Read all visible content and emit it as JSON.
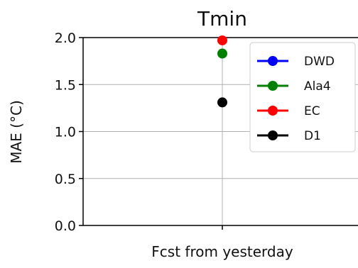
{
  "chart_data": {
    "type": "scatter",
    "title": "Tmin",
    "xlabel": "Fcst from yesterday",
    "ylabel": "MAE (°C)",
    "categories": [
      "Fcst from yesterday"
    ],
    "ylim": [
      0.0,
      2.0
    ],
    "yticks": [
      "0.0",
      "0.5",
      "1.0",
      "1.5",
      "2.0"
    ],
    "grid": true,
    "legend_position": "top-right",
    "series": [
      {
        "name": "DWD",
        "color": "#0000ff",
        "values": [
          null
        ]
      },
      {
        "name": "Ala4",
        "color": "#008000",
        "values": [
          1.83
        ]
      },
      {
        "name": "EC",
        "color": "#ff0000",
        "values": [
          1.97
        ]
      },
      {
        "name": "D1",
        "color": "#000000",
        "values": [
          1.31
        ]
      }
    ]
  }
}
